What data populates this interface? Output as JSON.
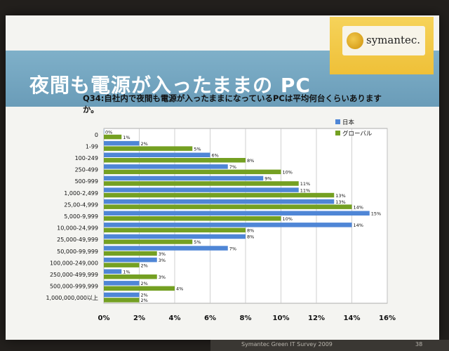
{
  "slide": {
    "title": "夜間も電源が入ったままの PC",
    "question": "Q34:自社内で夜間も電源が入ったままになっているPCは平均何台くらいありますか。",
    "logo_text": "symantec.",
    "footer": "Symantec Green IT Survey 2009",
    "page_number": "38"
  },
  "colors": {
    "japan": "#4f86d6",
    "global": "#74a022",
    "title_bar": "#6fa3bf",
    "logo_bg": "#f2c43e"
  },
  "chart_data": {
    "type": "bar",
    "orientation": "horizontal",
    "categories": [
      "0",
      "1-99",
      "100-249",
      "250-499",
      "500-999",
      "1,000-2,499",
      "25,00-4,999",
      "5,000-9,999",
      "10,000-24,999",
      "25,000-49,999",
      "50,000-99,999",
      "100,000-249,000",
      "250,000-499,999",
      "500,000-999,999",
      "1,000,000,000以上"
    ],
    "series": [
      {
        "name": "日本",
        "color": "#4f86d6",
        "values": [
          0,
          2,
          6,
          7,
          9,
          11,
          13,
          15,
          14,
          8,
          7,
          3,
          1,
          2,
          2
        ]
      },
      {
        "name": "グローバル",
        "color": "#74a022",
        "values": [
          1,
          5,
          8,
          10,
          11,
          13,
          14,
          10,
          8,
          5,
          3,
          2,
          3,
          4,
          2
        ]
      }
    ],
    "data_labels": {
      "japan": [
        "0%",
        "2%",
        "6%",
        "7%",
        "9%",
        "11%",
        "13%",
        "15%",
        "14%",
        "8%",
        "7%",
        "3%",
        "1%",
        "2%",
        "2%"
      ],
      "global": [
        "1%",
        "5%",
        "8%",
        "10%",
        "11%",
        "13%",
        "14%",
        "10%",
        "8%",
        "5%",
        "3%",
        "2%",
        "3%",
        "4%",
        "2%"
      ]
    },
    "xlim": [
      0,
      16
    ],
    "x_ticks": [
      "0%",
      "2%",
      "4%",
      "6%",
      "8%",
      "10%",
      "12%",
      "14%",
      "16%"
    ],
    "grid": true,
    "legend_position": "top-right"
  }
}
